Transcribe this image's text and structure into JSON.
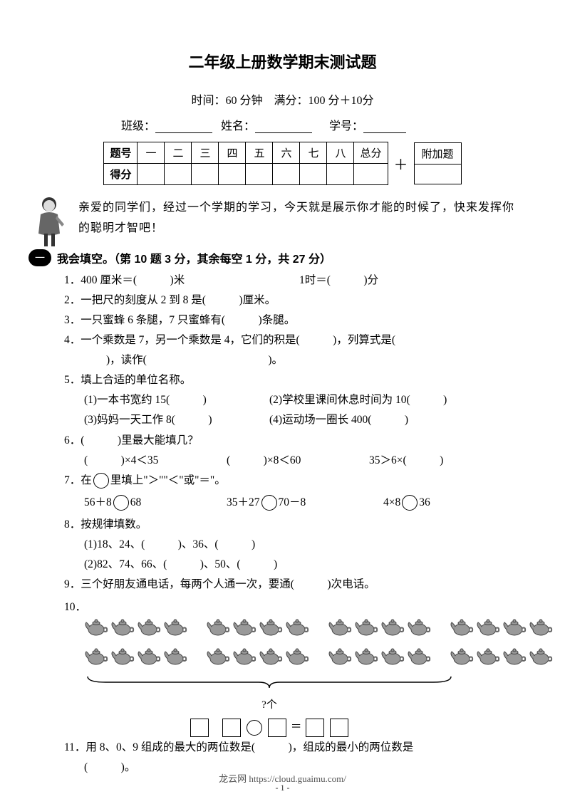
{
  "title": "二年级上册数学期末测试题",
  "meta": "时间：60 分钟　满分：100 分＋10分",
  "info": {
    "class_label": "班级：",
    "name_label": "姓名：",
    "id_label": "学号："
  },
  "score_table": {
    "header_label": "题号",
    "score_label": "得分",
    "cols": [
      "一",
      "二",
      "三",
      "四",
      "五",
      "六",
      "七",
      "八",
      "总分"
    ],
    "plus": "＋",
    "extra": "附加题"
  },
  "intro": "亲爱的同学们，经过一个学期的学习，今天就是展示你才能的时候了，快来发挥你的聪明才智吧！",
  "section1": {
    "badge": "一",
    "title": "我会填空。（第 10 题 3 分，其余每空 1 分，共 27 分）"
  },
  "q": {
    "q1a": "1．400 厘米＝(　　　)米",
    "q1b": "1时＝(　　　)分",
    "q2": "2．一把尺的刻度从 2 到 8 是(　　　)厘米。",
    "q3": "3．一只蜜蜂 6 条腿，7 只蜜蜂有(　　　)条腿。",
    "q4a": "4．一个乘数是 7，另一个乘数是 4，它们的积是(　　　)，列算式是(",
    "q4b": "　　)，读作(　　　　　　　　　　　)。",
    "q5": "5．填上合适的单位名称。",
    "q5_1": "(1)一本书宽约 15(　　　)",
    "q5_2": "(2)学校里课间休息时间为 10(　　　)",
    "q5_3": "(3)妈妈一天工作 8(　　　)",
    "q5_4": "(4)运动场一圈长 400(　　　)",
    "q6": "6．(　　　)里最大能填几？",
    "q6_1": "(　　　)×4＜35",
    "q6_2": "(　　　)×8＜60",
    "q6_3": "35＞6×(　　　)",
    "q7": "7．在",
    "q7b": "里填上\"＞\"\"＜\"或\"＝\"。",
    "q7_1a": "56＋8",
    "q7_1b": "68",
    "q7_2a": "35＋27",
    "q7_2b": "70－8",
    "q7_3a": "4×8",
    "q7_3b": "36",
    "q8": "8．按规律填数。",
    "q8_1": "(1)18、24、(　　　)、36、(　　　)",
    "q8_2": "(2)82、74、66、(　　　)、50、(　　　)",
    "q9": "9．三个好朋友通电话，每两个人通一次，要通(　　　)次电话。",
    "q10": "10．",
    "q10_label": "?个",
    "q10_eq": "＝",
    "q11": "11．用 8、0、9 组成的最大的两位数是(　　　)，组成的最小的两位数是",
    "q11b": "(　　　)。"
  },
  "page_num": "- 1 -",
  "footer": "龙云网 https://cloud.guaimu.com/",
  "teapot_groups": [
    4,
    4,
    4,
    4
  ],
  "colors": {
    "text": "#000000",
    "bg": "#ffffff",
    "teapot": "#888888"
  }
}
